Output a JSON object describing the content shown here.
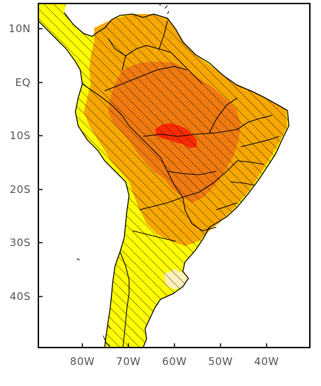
{
  "map": {
    "region": "South America",
    "lat_ticks": [
      "10N",
      "EQ",
      "10S",
      "20S",
      "30S",
      "40S"
    ],
    "lon_ticks": [
      "80W",
      "70W",
      "60W",
      "50W",
      "40W"
    ],
    "fill_levels": [
      {
        "level": "lightest",
        "color": "#fdf0b8"
      },
      {
        "level": "low",
        "color": "#ffff00"
      },
      {
        "level": "medium",
        "color": "#f7a800"
      },
      {
        "level": "high",
        "color": "#f07a10"
      },
      {
        "level": "highest",
        "color": "#ff2a00"
      }
    ],
    "hatching": "diagonal black lines over land",
    "borders": "country and state boundaries in black"
  }
}
